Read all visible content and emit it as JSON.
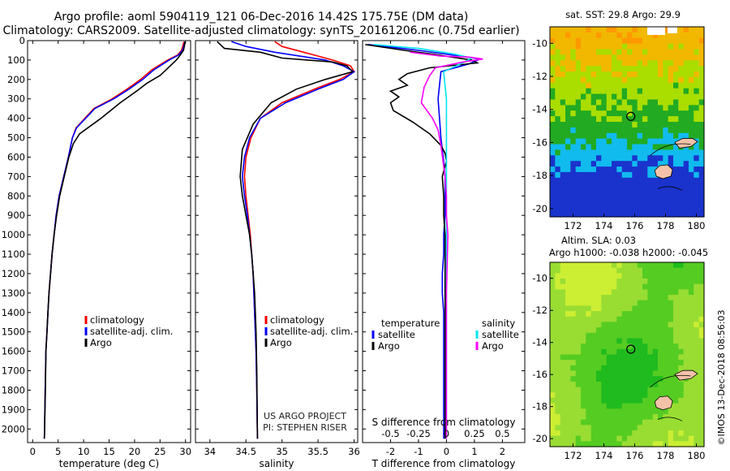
{
  "header": {
    "title_line1": "Argo profile: aoml 5904119_121 06-Dec-2016 14.42S 175.75E (DM data)",
    "title_line2": "Climatology: CARS2009. Satellite-adjusted climatology: synTS_20161206.nc (0.75d earlier)"
  },
  "credits": {
    "project": "US ARGO PROJECT",
    "pi": "PI: STEPHEN RISER",
    "imos": "©IMOS 13-Dec-2018 08:56:03"
  },
  "colors": {
    "climatology": "#ff0000",
    "satellite": "#0000ff",
    "argo": "#000000",
    "satellite_s": "#00e5ee",
    "argo_s": "#ff00ff",
    "ocean_warm": "#f2b800",
    "ocean_cool": "#22aa22",
    "land": "#f4c2a8"
  },
  "chart_data": [
    {
      "type": "line",
      "id": "temperature",
      "xlabel": "temperature (deg C)",
      "ylabel": "",
      "xlim": [
        -1,
        31
      ],
      "ylim": [
        2070,
        0
      ],
      "xticks": [
        0,
        5,
        10,
        15,
        20,
        25,
        30
      ],
      "yticks": [
        0,
        100,
        200,
        300,
        400,
        500,
        600,
        700,
        800,
        900,
        1000,
        1100,
        1200,
        1300,
        1400,
        1500,
        1600,
        1700,
        1800,
        1900,
        2000
      ],
      "legend": [
        "climatology",
        "satellite-adj. clim.",
        "Argo"
      ],
      "legend_position": "bottom-center",
      "series": [
        {
          "name": "climatology",
          "color": "#ff0000",
          "x": [
            29.7,
            29.5,
            29.2,
            28.4,
            26.5,
            23.4,
            21.2,
            18.5,
            15.6,
            12.0,
            8.5,
            7.8,
            7.0,
            6.1,
            5.2,
            4.6,
            4.2,
            3.8,
            3.5,
            3.2,
            3.0,
            2.8,
            2.6,
            2.45,
            2.3
          ],
          "y": [
            5,
            25,
            50,
            75,
            100,
            150,
            200,
            250,
            300,
            350,
            450,
            500,
            600,
            700,
            800,
            900,
            1000,
            1100,
            1200,
            1300,
            1400,
            1500,
            1600,
            1800,
            2050
          ]
        },
        {
          "name": "satellite-adj. clim.",
          "color": "#0000ff",
          "x": [
            29.9,
            29.7,
            29.4,
            28.6,
            26.8,
            23.8,
            21.6,
            18.9,
            15.9,
            12.2,
            8.6,
            7.8,
            7.0,
            6.1,
            5.2,
            4.6,
            4.2,
            3.8,
            3.5,
            3.2,
            3.0,
            2.8,
            2.6,
            2.45,
            2.3
          ],
          "y": [
            5,
            25,
            50,
            75,
            100,
            150,
            200,
            250,
            300,
            350,
            450,
            500,
            600,
            700,
            800,
            900,
            1000,
            1100,
            1200,
            1300,
            1400,
            1500,
            1600,
            1800,
            2050
          ]
        },
        {
          "name": "Argo",
          "color": "#000000",
          "x": [
            29.9,
            29.8,
            29.6,
            28.8,
            28.2,
            26.2,
            25.0,
            22.4,
            20.4,
            17.2,
            13.4,
            9.2,
            8.0,
            7.1,
            6.2,
            5.3,
            4.7,
            4.2,
            3.8,
            3.5,
            3.2,
            3.0,
            2.8,
            2.6,
            2.5,
            2.3
          ],
          "y": [
            5,
            25,
            50,
            80,
            100,
            150,
            180,
            220,
            260,
            320,
            400,
            480,
            530,
            600,
            700,
            800,
            900,
            1000,
            1100,
            1200,
            1300,
            1400,
            1500,
            1600,
            1800,
            2050
          ]
        }
      ]
    },
    {
      "type": "line",
      "id": "salinity",
      "xlabel": "salinity",
      "ylabel": "",
      "xlim": [
        33.8,
        36.05
      ],
      "ylim": [
        2070,
        0
      ],
      "xticks": [
        34,
        34.5,
        35,
        35.5,
        36
      ],
      "legend": [
        "climatology",
        "satellite-adj. clim.",
        "Argo"
      ],
      "legend_position": "bottom-right",
      "series": [
        {
          "name": "climatology",
          "color": "#ff0000",
          "x": [
            34.9,
            35.0,
            35.3,
            35.7,
            35.95,
            36.0,
            35.8,
            35.45,
            35.0,
            34.7,
            34.57,
            34.5,
            34.48,
            34.5,
            34.53,
            34.56,
            34.58,
            34.6,
            34.61,
            34.62,
            34.63,
            34.64,
            34.65,
            34.66
          ],
          "y": [
            5,
            30,
            60,
            100,
            130,
            160,
            200,
            250,
            320,
            400,
            500,
            600,
            700,
            800,
            900,
            1000,
            1100,
            1200,
            1300,
            1400,
            1500,
            1600,
            1800,
            2050
          ]
        },
        {
          "name": "satellite-adj. clim.",
          "color": "#0000ff",
          "x": [
            34.3,
            34.5,
            34.9,
            35.6,
            35.85,
            36.0,
            35.85,
            35.5,
            35.05,
            34.7,
            34.55,
            34.48,
            34.45,
            34.48,
            34.52,
            34.55,
            34.58,
            34.6,
            34.61,
            34.62,
            34.63,
            34.64,
            34.65,
            34.66
          ],
          "y": [
            5,
            30,
            60,
            100,
            130,
            160,
            200,
            250,
            320,
            400,
            500,
            600,
            700,
            800,
            900,
            1000,
            1100,
            1200,
            1300,
            1400,
            1500,
            1600,
            1800,
            2050
          ]
        },
        {
          "name": "Argo",
          "color": "#000000",
          "x": [
            34.1,
            34.2,
            34.7,
            35.0,
            35.7,
            35.9,
            35.98,
            35.6,
            35.2,
            34.85,
            34.6,
            34.45,
            34.42,
            34.45,
            34.5,
            34.55,
            34.58,
            34.6,
            34.62,
            34.63,
            34.64,
            34.65,
            34.66
          ],
          "y": [
            5,
            40,
            60,
            90,
            110,
            130,
            160,
            200,
            250,
            320,
            430,
            560,
            700,
            800,
            900,
            1000,
            1100,
            1200,
            1300,
            1400,
            1500,
            1700,
            2050
          ]
        }
      ]
    },
    {
      "type": "line",
      "id": "difference",
      "xlabel": "T difference from climatology",
      "xlabel_top": "S difference from climatology",
      "ylabel": "",
      "xlim": [
        -3.0,
        2.8
      ],
      "ylim": [
        2070,
        0
      ],
      "xticks": [
        -2,
        -1,
        0,
        1,
        2
      ],
      "xticks_s": [
        -0.5,
        -0.25,
        0,
        0.25,
        0.5
      ],
      "xticks_s_labels": [
        "-0.5",
        "-0.25",
        "0",
        "0.25",
        "0.5"
      ],
      "legend_header_left": "temperature",
      "legend_header_right": "salinity",
      "legend_left": [
        "satellite",
        "Argo"
      ],
      "legend_right": [
        "satellite",
        "Argo"
      ],
      "series": [
        {
          "name": "T satellite",
          "color": "#0000ff",
          "x": [
            -2.8,
            -1.0,
            0.5,
            1.2,
            0.8,
            -0.2,
            -0.3,
            -0.2,
            -0.1,
            -0.05,
            -0.05,
            -0.05,
            -0.1,
            -0.1,
            -0.15,
            -0.15,
            -0.1,
            -0.1,
            -0.1,
            -0.1,
            -0.1,
            -0.1
          ],
          "y": [
            20,
            50,
            80,
            95,
            120,
            160,
            300,
            500,
            620,
            700,
            800,
            900,
            1000,
            1100,
            1200,
            1300,
            1400,
            1500,
            1600,
            1700,
            1800,
            2050
          ]
        },
        {
          "name": "T Argo",
          "color": "#000000",
          "x": [
            -2.9,
            -1.5,
            -0.5,
            0.2,
            0.9,
            1.1,
            -0.6,
            -1.4,
            -1.7,
            -1.4,
            -2.0,
            -1.7,
            -2.0,
            -1.9,
            -1.2,
            -0.6,
            -0.2,
            -0.05,
            0.0,
            -0.15,
            -0.1,
            -0.1,
            -0.05,
            -0.05,
            -0.05,
            -0.05
          ],
          "y": [
            20,
            50,
            70,
            85,
            100,
            115,
            140,
            170,
            200,
            230,
            260,
            290,
            320,
            360,
            420,
            480,
            540,
            580,
            620,
            700,
            800,
            900,
            1000,
            1300,
            1600,
            2050
          ]
        },
        {
          "name": "S satellite",
          "color": "#00e5ee",
          "x": [
            -2.6,
            -1.0,
            0.3,
            0.9,
            0.5,
            -0.1,
            0.0,
            0.0,
            0.0,
            0.0,
            0.0,
            0.0,
            0.0
          ],
          "y": [
            20,
            40,
            70,
            90,
            120,
            160,
            300,
            500,
            800,
            1100,
            1400,
            1700,
            2050
          ]
        },
        {
          "name": "S Argo",
          "color": "#ff00ff",
          "x": [
            -1.3,
            -0.2,
            0.8,
            1.3,
            0.6,
            -0.4,
            -0.6,
            -0.8,
            -0.9,
            -0.5,
            -0.3,
            -0.2,
            -0.05,
            0.0,
            0.0,
            0.05,
            0.0,
            0.0,
            0.0
          ],
          "y": [
            60,
            80,
            85,
            95,
            110,
            140,
            180,
            240,
            320,
            400,
            460,
            540,
            700,
            800,
            900,
            1000,
            1300,
            1600,
            2050
          ]
        }
      ]
    },
    {
      "type": "heatmap",
      "id": "sst_map",
      "title": "sat. SST: 29.8 Argo: 29.9",
      "xlim": [
        170.5,
        180.5
      ],
      "ylim": [
        -20.5,
        -9
      ],
      "xticks": [
        172,
        174,
        176,
        178,
        180
      ],
      "yticks": [
        -10,
        -12,
        -14,
        -16,
        -18,
        -20
      ],
      "float_position": [
        175.75,
        -14.42
      ],
      "colorscale": [
        "#1a33cc",
        "#11bbee",
        "#22aa22",
        "#aadd00",
        "#f2b800",
        "#ff9900"
      ]
    },
    {
      "type": "heatmap",
      "id": "sla_map",
      "title_line1": "Altim. SLA: 0.03",
      "title_line2": "Argo h1000: -0.038 h2000: -0.045",
      "xlim": [
        170.5,
        180.5
      ],
      "ylim": [
        -20.5,
        -9
      ],
      "xticks": [
        172,
        174,
        176,
        178,
        180
      ],
      "yticks": [
        -10,
        -12,
        -14,
        -16,
        -18,
        -20
      ],
      "float_position": [
        175.75,
        -14.42
      ],
      "colorscale": [
        "#1fbb1f",
        "#55cc22",
        "#99dd33",
        "#ccee33"
      ]
    }
  ]
}
